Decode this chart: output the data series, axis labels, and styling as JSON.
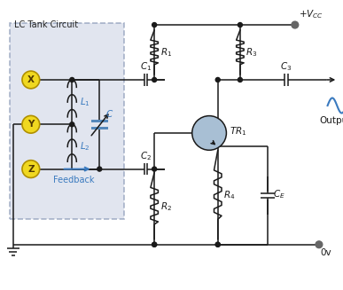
{
  "bg_color": "#ffffff",
  "line_color": "#1a1a1a",
  "blue_color": "#3a7abf",
  "tank_bg": "#cdd5e5",
  "tank_border": "#7788aa",
  "transistor_fill": "#a8bfd4",
  "node_fill": "#f0d820",
  "node_border": "#b09000",
  "gray_dot": "#666666",
  "figsize": [
    3.87,
    3.27
  ],
  "dpi": 100,
  "xlim": [
    0,
    10
  ],
  "ylim": [
    0,
    8.4
  ]
}
